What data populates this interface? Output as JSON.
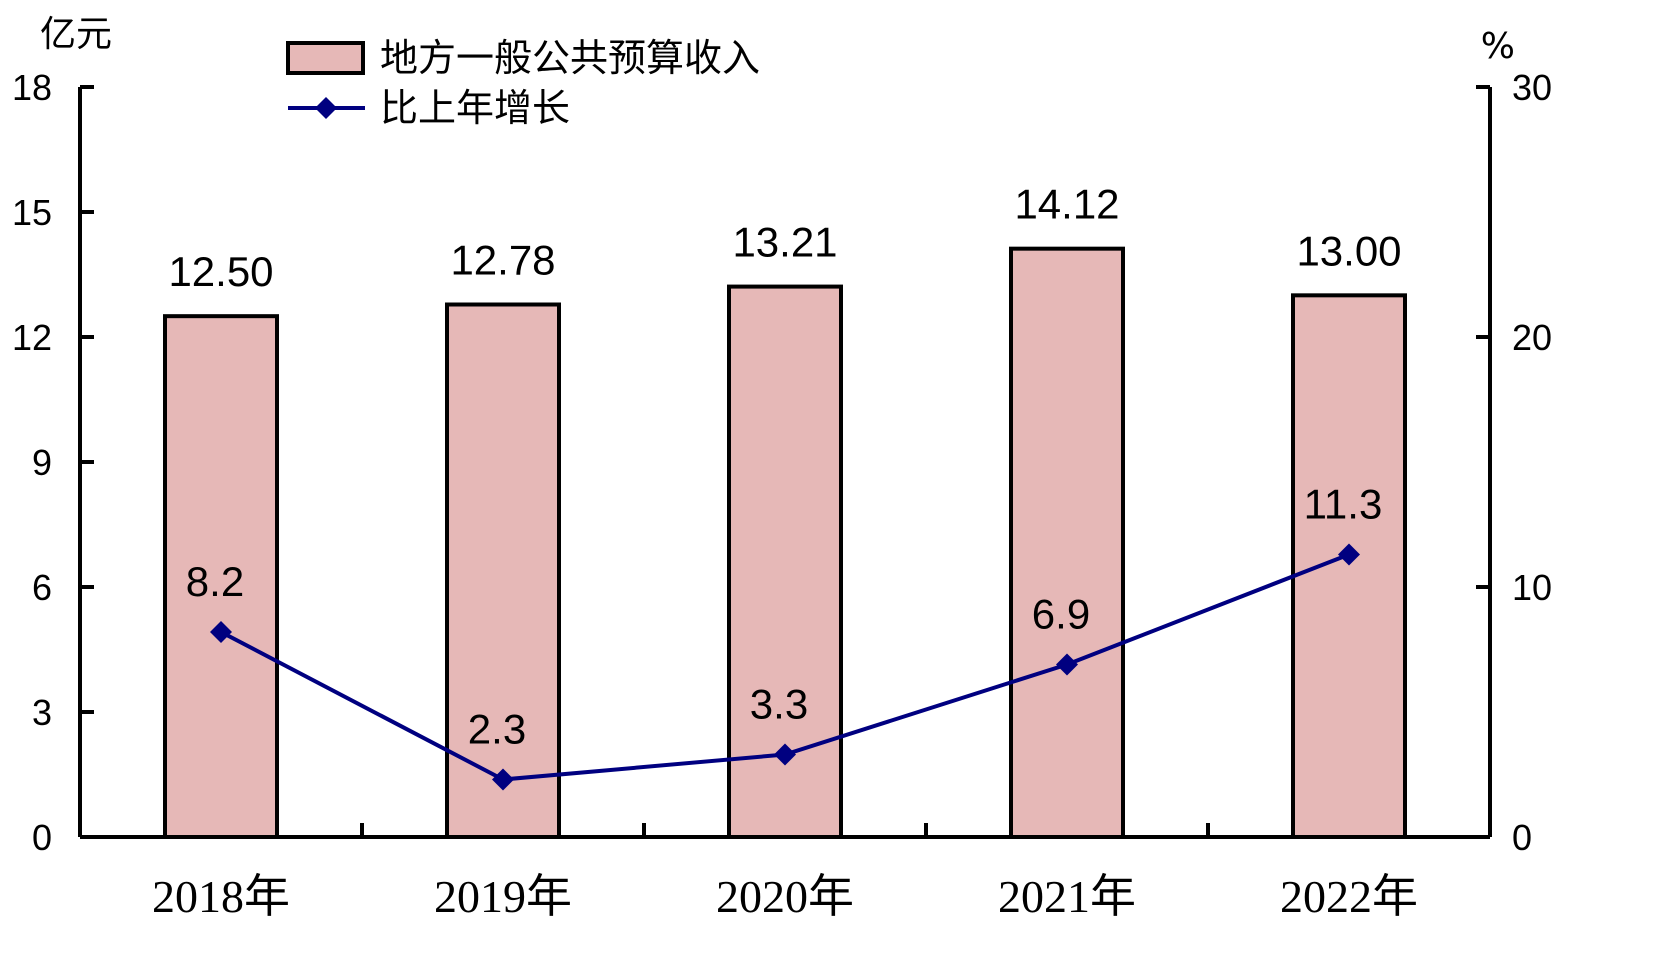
{
  "chart_data": {
    "type": "bar",
    "categories": [
      "2018年",
      "2019年",
      "2020年",
      "2021年",
      "2022年"
    ],
    "series": [
      {
        "name": "地方一般公共预算收入",
        "type": "bar",
        "axis": "left",
        "values": [
          12.5,
          12.78,
          13.21,
          14.12,
          13.0
        ],
        "labels": [
          "12.50",
          "12.78",
          "13.21",
          "14.12",
          "13.00"
        ],
        "color": "#e6b8b7",
        "edge_color": "#000000"
      },
      {
        "name": "比上年增长",
        "type": "line",
        "axis": "right",
        "values": [
          8.2,
          2.3,
          3.3,
          6.9,
          11.3
        ],
        "labels": [
          "8.2",
          "2.3",
          "3.3",
          "6.9",
          "11.3"
        ],
        "color": "#000080",
        "marker": "diamond"
      }
    ],
    "left_axis": {
      "unit": "亿元",
      "ylim": [
        0,
        18
      ],
      "ticks": [
        "0",
        "3",
        "6",
        "9",
        "12",
        "15",
        "18"
      ]
    },
    "right_axis": {
      "unit": "%",
      "ylim": [
        0,
        30
      ],
      "ticks": [
        "0",
        "10",
        "20",
        "30"
      ]
    },
    "legend_position": "top-left",
    "grid": false
  }
}
